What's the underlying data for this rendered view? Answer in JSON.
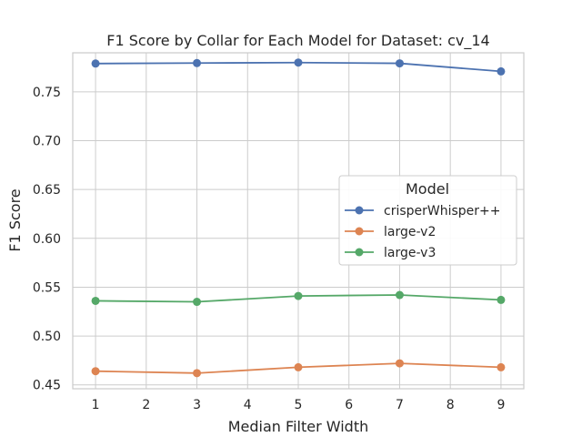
{
  "chart_data": {
    "type": "line",
    "title": "F1 Score by Collar for Each Model for Dataset: cv_14",
    "xlabel": "Median Filter Width",
    "ylabel": "F1 Score",
    "x": [
      1,
      3,
      5,
      7,
      9
    ],
    "xticks": [
      "1",
      "2",
      "3",
      "4",
      "5",
      "6",
      "7",
      "8",
      "9"
    ],
    "yticks": [
      "0.45",
      "0.50",
      "0.55",
      "0.60",
      "0.65",
      "0.70",
      "0.75"
    ],
    "ylim": [
      0.446,
      0.79
    ],
    "xlim": [
      0.55,
      9.45
    ],
    "grid": true,
    "legend": {
      "title": "Model",
      "placement": "center-right"
    },
    "series": [
      {
        "name": "crisperWhisper++",
        "color": "#4c72b0",
        "values": [
          0.779,
          0.7795,
          0.78,
          0.7792,
          0.771
        ]
      },
      {
        "name": "large-v2",
        "color": "#dd8452",
        "values": [
          0.464,
          0.462,
          0.468,
          0.472,
          0.468
        ]
      },
      {
        "name": "large-v3",
        "color": "#55a868",
        "values": [
          0.536,
          0.535,
          0.541,
          0.542,
          0.537
        ]
      }
    ]
  }
}
